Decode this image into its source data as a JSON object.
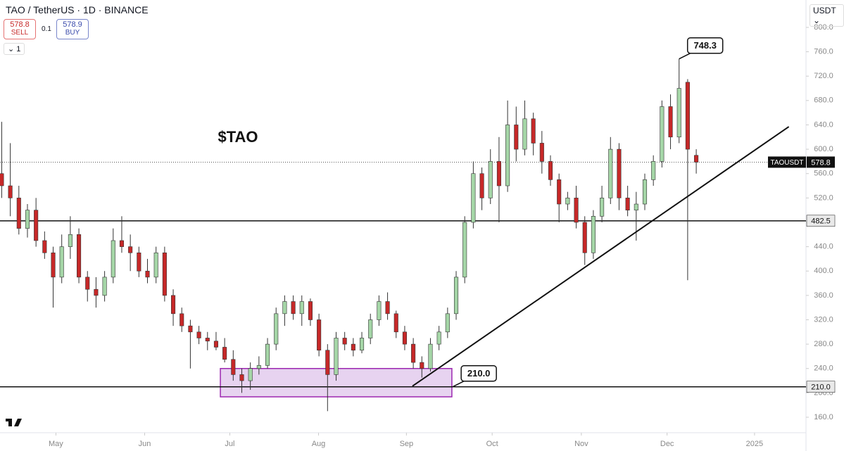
{
  "header": {
    "symbol": "TAO / TetherUS · 1D · BINANCE",
    "sell_price": "578.8",
    "sell": "SELL",
    "spread": "0.1",
    "buy_price": "578.9",
    "buy": "BUY",
    "interval_count": "1",
    "currency": "USDT"
  },
  "chart_data": {
    "type": "candlestick",
    "title": "$TAO",
    "open": [
      560,
      540,
      520,
      470,
      500,
      450,
      430,
      390,
      440,
      460,
      390,
      370,
      360,
      390,
      450,
      440,
      430,
      400,
      390,
      430,
      360,
      330,
      310,
      300,
      290,
      285,
      275,
      255,
      230,
      220,
      240,
      245,
      280,
      330,
      350,
      330,
      350,
      320,
      270,
      230,
      290,
      280,
      270,
      290,
      320,
      350,
      330,
      300,
      280,
      250,
      240,
      280,
      300,
      330,
      390,
      480,
      560,
      520,
      580,
      540,
      640,
      600,
      650,
      610,
      580,
      550,
      510,
      520,
      480,
      430,
      490,
      520,
      600,
      520,
      500,
      510,
      550,
      580,
      670,
      620,
      710,
      590
    ],
    "high": [
      645,
      610,
      540,
      510,
      520,
      465,
      440,
      460,
      490,
      470,
      400,
      390,
      400,
      470,
      490,
      460,
      440,
      420,
      440,
      440,
      370,
      340,
      320,
      310,
      300,
      300,
      290,
      270,
      240,
      250,
      260,
      290,
      340,
      360,
      360,
      360,
      355,
      330,
      280,
      300,
      300,
      290,
      300,
      330,
      360,
      365,
      335,
      310,
      290,
      260,
      290,
      310,
      340,
      400,
      490,
      580,
      570,
      600,
      620,
      680,
      670,
      680,
      660,
      630,
      590,
      560,
      530,
      540,
      490,
      500,
      540,
      620,
      610,
      540,
      530,
      560,
      590,
      680,
      690,
      748.3,
      715,
      600
    ],
    "low": [
      520,
      490,
      460,
      455,
      440,
      420,
      340,
      380,
      420,
      380,
      350,
      340,
      350,
      380,
      430,
      400,
      390,
      380,
      380,
      350,
      310,
      300,
      240,
      280,
      270,
      270,
      250,
      220,
      200,
      205,
      230,
      240,
      270,
      310,
      320,
      310,
      310,
      260,
      170,
      220,
      270,
      260,
      265,
      280,
      310,
      320,
      290,
      270,
      240,
      225,
      235,
      270,
      290,
      320,
      380,
      470,
      500,
      510,
      480,
      530,
      580,
      590,
      590,
      560,
      540,
      480,
      500,
      470,
      410,
      420,
      480,
      510,
      500,
      490,
      450,
      500,
      540,
      570,
      600,
      610,
      385,
      560
    ],
    "close": [
      540,
      520,
      470,
      500,
      450,
      430,
      390,
      440,
      460,
      390,
      370,
      360,
      390,
      450,
      440,
      430,
      400,
      390,
      430,
      360,
      330,
      310,
      300,
      290,
      285,
      275,
      255,
      230,
      220,
      240,
      245,
      280,
      330,
      350,
      330,
      350,
      320,
      270,
      230,
      290,
      280,
      270,
      290,
      320,
      350,
      330,
      300,
      280,
      250,
      240,
      280,
      300,
      330,
      390,
      480,
      560,
      520,
      580,
      540,
      640,
      600,
      650,
      610,
      580,
      550,
      510,
      520,
      480,
      430,
      490,
      520,
      600,
      520,
      500,
      510,
      550,
      580,
      670,
      620,
      700,
      600,
      578.8
    ],
    "up_color": "#a5d6a7",
    "down_color": "#c62828",
    "xlim": [
      -0.2,
      93.8
    ],
    "ylim": [
      134.6,
      845
    ],
    "xticks": [
      {
        "value": 6.32,
        "label": "May"
      },
      {
        "value": 16.67,
        "label": "Jun"
      },
      {
        "value": 26.6,
        "label": "Jul"
      },
      {
        "value": 36.95,
        "label": "Aug"
      },
      {
        "value": 47.2,
        "label": "Sep"
      },
      {
        "value": 57.2,
        "label": "Oct"
      },
      {
        "value": 67.6,
        "label": "Nov"
      },
      {
        "value": 77.6,
        "label": "Dec"
      },
      {
        "value": 87.8,
        "label": "2025"
      }
    ],
    "yticks": [
      {
        "value": 160,
        "label": "160.0"
      },
      {
        "value": 200,
        "label": "200.0"
      },
      {
        "value": 240,
        "label": "240.0"
      },
      {
        "value": 280,
        "label": "280.0"
      },
      {
        "value": 320,
        "label": "320.0"
      },
      {
        "value": 360,
        "label": "360.0"
      },
      {
        "value": 400,
        "label": "400.0"
      },
      {
        "value": 440,
        "label": "440.0"
      },
      {
        "value": 480,
        "label": "480.0"
      },
      {
        "value": 520,
        "label": "520.0"
      },
      {
        "value": 560,
        "label": "560.0"
      },
      {
        "value": 600,
        "label": "600.0"
      },
      {
        "value": 640,
        "label": "640.0"
      },
      {
        "value": 680,
        "label": "680.0"
      },
      {
        "value": 720,
        "label": "720.0"
      },
      {
        "value": 760,
        "label": "760.0"
      },
      {
        "value": 800,
        "label": "800.0"
      }
    ],
    "levels": [
      {
        "value": 482.5,
        "label": "482.5"
      },
      {
        "value": 210,
        "label": "210.0"
      }
    ],
    "last_price": {
      "value": 578.8,
      "label": "578.8",
      "symbol": "TAOUSDT"
    },
    "annotations": [
      {
        "text": "748.3",
        "value": 748.3,
        "index": 79
      },
      {
        "text": "210.0",
        "value": 210,
        "index": 52.6
      }
    ],
    "trendline": {
      "x": [
        47.9,
        91.8
      ],
      "y": [
        211,
        637
      ]
    },
    "zone": {
      "x": [
        25.5,
        52.5
      ],
      "y": [
        193.5,
        240
      ],
      "color": "#e1c8ec"
    }
  }
}
